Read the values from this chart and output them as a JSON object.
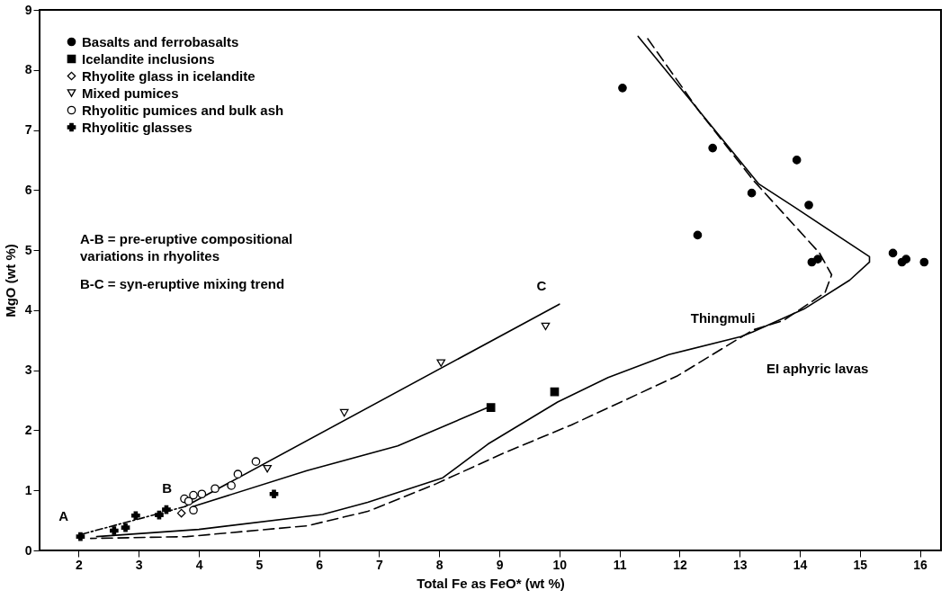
{
  "chart_data": {
    "type": "scatter",
    "xlabel": "Total Fe as FeO* (wt %)",
    "ylabel": "MgO (wt %)",
    "xlim": [
      1.35,
      16.35
    ],
    "ylim": [
      0,
      9
    ],
    "xticks": [
      2,
      3,
      4,
      5,
      6,
      7,
      8,
      9,
      10,
      11,
      12,
      13,
      14,
      15,
      16
    ],
    "yticks": [
      0,
      1,
      2,
      3,
      4,
      5,
      6,
      7,
      8,
      9
    ],
    "grid": false,
    "legend": "top left",
    "series": [
      {
        "name": "Basalts and ferrobasalts",
        "color": "#000000",
        "marker": "circle",
        "x": [
          11.05,
          12.55,
          13.95,
          13.2,
          14.15,
          12.3,
          14.2,
          14.3,
          15.55,
          15.7,
          15.77,
          16.07
        ],
        "values": [
          7.7,
          6.7,
          6.5,
          5.95,
          5.75,
          5.25,
          4.8,
          4.85,
          4.95,
          4.8,
          4.85,
          4.8
        ]
      },
      {
        "name": "Icelandite inclusions",
        "color": "#000000",
        "marker": "square",
        "x": [
          8.86,
          9.92
        ],
        "values": [
          2.38,
          2.64
        ]
      },
      {
        "name": "Rhyolite glass in icelandite",
        "color": "#ffffff",
        "marker": "diamond",
        "x": [
          3.71
        ],
        "values": [
          0.62
        ]
      },
      {
        "name": "Mixed pumices",
        "color": "#ffffff",
        "marker": "triangle-down",
        "x": [
          5.14,
          6.42,
          8.03,
          9.77
        ],
        "values": [
          1.36,
          2.29,
          3.12,
          3.73
        ]
      },
      {
        "name": "Rhyolitic pumices and bulk ash",
        "color": "#ffffff",
        "marker": "circle",
        "x": [
          3.76,
          3.83,
          3.91,
          4.05,
          4.27,
          4.54,
          4.65,
          4.95,
          3.91
        ],
        "values": [
          0.86,
          0.82,
          0.92,
          0.94,
          1.03,
          1.08,
          1.27,
          1.48,
          0.67
        ]
      },
      {
        "name": "Rhyolitic glasses",
        "color": "#000000",
        "marker": "cross",
        "x": [
          2.03,
          2.59,
          2.78,
          2.95,
          3.34,
          3.46,
          5.25
        ],
        "values": [
          0.23,
          0.33,
          0.38,
          0.58,
          0.59,
          0.68,
          0.94
        ]
      },
      {
        "type": "line",
        "color": "#000000",
        "line_style": "dashdot",
        "x": [
          2.05,
          3.77
        ],
        "values": [
          0.27,
          0.73
        ]
      },
      {
        "type": "line",
        "color": "#000000",
        "line_style": "solid",
        "x": [
          3.77,
          10.0
        ],
        "values": [
          0.73,
          4.1
        ]
      },
      {
        "type": "line",
        "color": "#000000",
        "line_style": "solid",
        "x": [
          3.9,
          5.8,
          7.31,
          8.81
        ],
        "values": [
          0.73,
          1.33,
          1.74,
          2.38
        ]
      },
      {
        "type": "line",
        "color": "#000000",
        "line_style": "solid",
        "x": [
          11.31,
          13.32,
          13.92,
          15.16,
          15.16,
          14.83,
          14.07,
          13.22,
          13.02,
          11.82,
          10.81,
          9.97,
          8.81,
          8.06,
          6.81,
          6.06,
          4.0,
          2.3
        ],
        "values": [
          8.56,
          6.1,
          5.71,
          4.89,
          4.8,
          4.5,
          4.02,
          3.64,
          3.56,
          3.26,
          2.88,
          2.47,
          1.77,
          1.21,
          0.8,
          0.6,
          0.35,
          0.23
        ]
      },
      {
        "type": "line",
        "color": "#000000",
        "line_style": "dashed",
        "x": [
          11.47,
          12.32,
          13.22,
          14.33,
          14.53,
          14.42,
          13.73,
          13.22,
          11.97,
          10.2,
          9.07,
          7.95,
          6.81,
          5.8,
          3.8,
          2.2
        ],
        "values": [
          8.52,
          7.32,
          6.17,
          4.95,
          4.59,
          4.29,
          3.83,
          3.67,
          2.91,
          2.09,
          1.62,
          1.11,
          0.65,
          0.41,
          0.23,
          0.2
        ]
      }
    ],
    "annotations": [
      {
        "text": "A",
        "x": 2.05,
        "y": 0.27
      },
      {
        "text": "B",
        "x": 3.77,
        "y": 0.73
      },
      {
        "text": "C",
        "x": 10.0,
        "y": 4.1
      },
      {
        "text": "Thingmuli",
        "x": 13.02,
        "y": 3.56
      },
      "A-B = pre-eruptive compositional\n         variations in rhyolites",
      "B-C = syn-eruptive mixing trend",
      "EI aphyric lavas"
    ]
  }
}
